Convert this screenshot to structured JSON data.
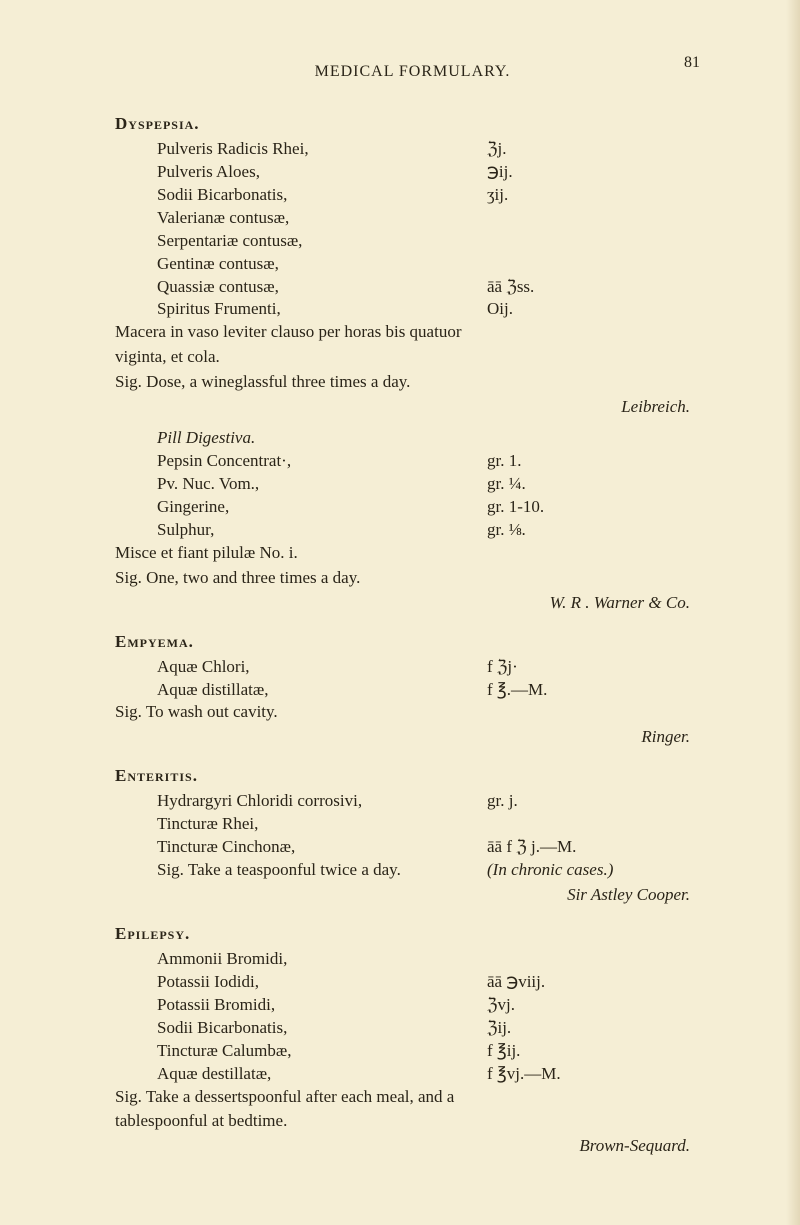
{
  "colors": {
    "page_background": "#f5eed5",
    "text_color": "#2a2418"
  },
  "typography": {
    "body_font_family": "Georgia, Times New Roman, serif",
    "body_fontsize_pt": 13,
    "heading_fontweight": "bold",
    "italic_for_attribution": true
  },
  "header": {
    "running_title": "MEDICAL FORMULARY.",
    "page_number": "81"
  },
  "sections": [
    {
      "heading": "Dyspepsia.",
      "ingredients": [
        {
          "name": "Pulveris Radicis Rhei,",
          "qty": "ℨj."
        },
        {
          "name": "Pulveris Aloes,",
          "qty": "℈ij."
        },
        {
          "name": "Sodii Bicarbonatis,",
          "qty": "ʒij."
        },
        {
          "name": "Valerianæ contusæ,",
          "qty": ""
        },
        {
          "name": "Serpentariæ contusæ,",
          "qty": ""
        },
        {
          "name": "Gentinæ contusæ,",
          "qty": ""
        },
        {
          "name": "Quassiæ contusæ,",
          "qty": "āā ℨss."
        },
        {
          "name": "Spiritus Frumenti,",
          "qty": "Oij."
        }
      ],
      "body_lines": [
        "Macera in vaso leviter clauso per horas bis quatuor",
        "viginta, et cola."
      ],
      "sig": "Sig. Dose, a wineglassful three times a day.",
      "attribution": "Leibreich.",
      "subsection": {
        "title": "Pill Digestiva.",
        "ingredients": [
          {
            "name": "Pepsin Concentrat·,",
            "qty": "gr. 1."
          },
          {
            "name": "Pv. Nuc. Vom.,",
            "qty": "gr. ¼."
          },
          {
            "name": "Gingerine,",
            "qty": "gr. 1-10."
          },
          {
            "name": "Sulphur,",
            "qty": "gr. ⅛."
          }
        ],
        "misc": "Misce et fiant pilulæ No. i.",
        "sig": "Sig. One, two and three times a day.",
        "attribution": "W. R . Warner & Co."
      }
    },
    {
      "heading": "Empyema.",
      "ingredients": [
        {
          "name": "Aquæ Chlori,",
          "qty": "f ℨj·"
        },
        {
          "name": "Aquæ distillatæ,",
          "qty": "f ℥.—M."
        }
      ],
      "sig": "Sig. To wash out cavity.",
      "attribution": "Ringer."
    },
    {
      "heading": "Enteritis.",
      "ingredients": [
        {
          "name": "Hydrargyri Chloridi corrosivi,",
          "qty": "gr. j."
        },
        {
          "name": "Tincturæ Rhei,",
          "qty": ""
        },
        {
          "name": "Tincturæ Cinchonæ,",
          "qty": "āā f ℨ j.—M."
        }
      ],
      "sig_line": {
        "left": "Sig. Take a teaspoonful twice a day.",
        "right": "(In chronic cases.)"
      },
      "attribution": "Sir Astley Cooper."
    },
    {
      "heading": "Epilepsy.",
      "ingredients": [
        {
          "name": "Ammonii Bromidi,",
          "qty": ""
        },
        {
          "name": "Potassii Iodidi,",
          "qty": "āā ℈viij."
        },
        {
          "name": "Potassii Bromidi,",
          "qty": "ℨvj."
        },
        {
          "name": "Sodii Bicarbonatis,",
          "qty": "ℨij."
        },
        {
          "name": "Tincturæ Calumbæ,",
          "qty": "f ℥ij."
        },
        {
          "name": "Aquæ destillatæ,",
          "qty": "f ℥vj.—M."
        }
      ],
      "body_lines": [
        "Sig. Take a dessertspoonful after each meal, and a",
        "tablespoonful at bedtime."
      ],
      "attribution": "Brown-Sequard."
    }
  ]
}
